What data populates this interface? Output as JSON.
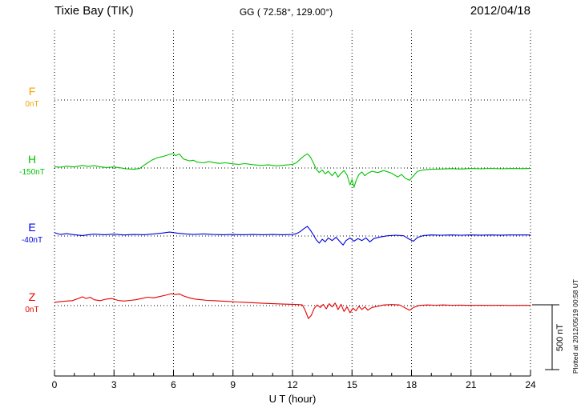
{
  "header": {
    "station": "Tixie Bay (TIK)",
    "coords": "GG ( 72.58°, 129.00°)",
    "date": "2012/04/18"
  },
  "footer_note": "Plotted at 2012/05/19 00:58 UT",
  "chart_data": {
    "type": "line",
    "title": "Tixie Bay (TIK) magnetogram 2012/04/18",
    "xlabel": "U T (hour)",
    "y_unit": "nT",
    "xlim": [
      0,
      24
    ],
    "x_ticks": [
      0,
      3,
      6,
      9,
      12,
      15,
      18,
      21,
      24
    ],
    "grid": "dotted",
    "legend_position": "left baseline labels",
    "scale_bar_label": "500 nT",
    "scale_bar_nT": 500,
    "series": [
      {
        "name": "F",
        "color": "#f5a300",
        "baseline_label": "0nT",
        "baseline_value_nT": 0,
        "note": "no visible trace (flat / not plotted)",
        "points": []
      },
      {
        "name": "H",
        "color": "#00c400",
        "baseline_label": "-150nT",
        "baseline_value_nT": -150,
        "points": [
          [
            0,
            10
          ],
          [
            0.3,
            6
          ],
          [
            0.6,
            14
          ],
          [
            1,
            8
          ],
          [
            1.4,
            20
          ],
          [
            1.7,
            12
          ],
          [
            2,
            18
          ],
          [
            2.3,
            10
          ],
          [
            2.6,
            4
          ],
          [
            3,
            8
          ],
          [
            3.3,
            2
          ],
          [
            3.6,
            -6
          ],
          [
            4,
            -10
          ],
          [
            4.3,
            -4
          ],
          [
            4.6,
            30
          ],
          [
            4.9,
            60
          ],
          [
            5.2,
            80
          ],
          [
            5.5,
            90
          ],
          [
            5.8,
            105
          ],
          [
            6,
            112
          ],
          [
            6.1,
            95
          ],
          [
            6.3,
            108
          ],
          [
            6.5,
            70
          ],
          [
            6.8,
            55
          ],
          [
            7,
            60
          ],
          [
            7.2,
            45
          ],
          [
            7.5,
            40
          ],
          [
            7.8,
            50
          ],
          [
            8,
            42
          ],
          [
            8.3,
            36
          ],
          [
            8.6,
            40
          ],
          [
            9,
            32
          ],
          [
            9.3,
            28
          ],
          [
            9.6,
            34
          ],
          [
            10,
            26
          ],
          [
            10.4,
            20
          ],
          [
            10.8,
            24
          ],
          [
            11.2,
            16
          ],
          [
            11.6,
            22
          ],
          [
            12,
            28
          ],
          [
            12.2,
            40
          ],
          [
            12.4,
            70
          ],
          [
            12.6,
            95
          ],
          [
            12.75,
            110
          ],
          [
            12.9,
            85
          ],
          [
            13.05,
            40
          ],
          [
            13.2,
            -10
          ],
          [
            13.35,
            -35
          ],
          [
            13.5,
            -15
          ],
          [
            13.65,
            -45
          ],
          [
            13.8,
            -25
          ],
          [
            14,
            -60
          ],
          [
            14.15,
            -30
          ],
          [
            14.3,
            -70
          ],
          [
            14.45,
            -40
          ],
          [
            14.6,
            -20
          ],
          [
            14.75,
            -55
          ],
          [
            14.9,
            -130
          ],
          [
            15,
            -90
          ],
          [
            15.1,
            -150
          ],
          [
            15.2,
            -100
          ],
          [
            15.35,
            -50
          ],
          [
            15.5,
            -30
          ],
          [
            15.65,
            -60
          ],
          [
            15.8,
            -40
          ],
          [
            16,
            -25
          ],
          [
            16.3,
            -35
          ],
          [
            16.6,
            -20
          ],
          [
            17,
            -40
          ],
          [
            17.3,
            -70
          ],
          [
            17.5,
            -50
          ],
          [
            17.7,
            -80
          ],
          [
            17.9,
            -95
          ],
          [
            18.1,
            -60
          ],
          [
            18.3,
            -25
          ],
          [
            18.6,
            -15
          ],
          [
            19,
            -10
          ],
          [
            19.5,
            -8
          ],
          [
            20,
            -5
          ],
          [
            20.5,
            -8
          ],
          [
            21,
            -4
          ],
          [
            21.5,
            -6
          ],
          [
            22,
            -3
          ],
          [
            22.5,
            -6
          ],
          [
            23,
            -4
          ],
          [
            23.5,
            -5
          ],
          [
            24,
            -4
          ]
        ]
      },
      {
        "name": "E",
        "color": "#0000dd",
        "baseline_label": "-40nT",
        "baseline_value_nT": -40,
        "points": [
          [
            0,
            25
          ],
          [
            0.3,
            12
          ],
          [
            0.6,
            18
          ],
          [
            1,
            10
          ],
          [
            1.4,
            4
          ],
          [
            1.7,
            10
          ],
          [
            2,
            14
          ],
          [
            2.5,
            10
          ],
          [
            3,
            14
          ],
          [
            3.5,
            8
          ],
          [
            4,
            12
          ],
          [
            4.5,
            10
          ],
          [
            5,
            16
          ],
          [
            5.4,
            22
          ],
          [
            5.8,
            30
          ],
          [
            6.2,
            22
          ],
          [
            6.6,
            16
          ],
          [
            7,
            12
          ],
          [
            7.5,
            16
          ],
          [
            8,
            12
          ],
          [
            8.5,
            10
          ],
          [
            9,
            12
          ],
          [
            9.5,
            10
          ],
          [
            10,
            12
          ],
          [
            10.5,
            10
          ],
          [
            11,
            12
          ],
          [
            11.5,
            10
          ],
          [
            12,
            12
          ],
          [
            12.2,
            18
          ],
          [
            12.4,
            35
          ],
          [
            12.6,
            60
          ],
          [
            12.75,
            74
          ],
          [
            12.9,
            45
          ],
          [
            13.05,
            10
          ],
          [
            13.2,
            -30
          ],
          [
            13.35,
            -55
          ],
          [
            13.5,
            -25
          ],
          [
            13.65,
            -45
          ],
          [
            13.8,
            -15
          ],
          [
            14,
            -35
          ],
          [
            14.2,
            -10
          ],
          [
            14.4,
            -45
          ],
          [
            14.55,
            -70
          ],
          [
            14.7,
            -35
          ],
          [
            14.9,
            -15
          ],
          [
            15.1,
            -40
          ],
          [
            15.3,
            -20
          ],
          [
            15.5,
            -35
          ],
          [
            15.7,
            -15
          ],
          [
            15.9,
            -45
          ],
          [
            16.1,
            -20
          ],
          [
            16.4,
            -8
          ],
          [
            16.8,
            2
          ],
          [
            17.2,
            6
          ],
          [
            17.6,
            2
          ],
          [
            17.9,
            -25
          ],
          [
            18.1,
            -40
          ],
          [
            18.3,
            -12
          ],
          [
            18.6,
            4
          ],
          [
            19,
            8
          ],
          [
            19.5,
            6
          ],
          [
            20,
            8
          ],
          [
            20.5,
            6
          ],
          [
            21,
            8
          ],
          [
            21.5,
            7
          ],
          [
            22,
            8
          ],
          [
            22.5,
            7
          ],
          [
            23,
            8
          ],
          [
            23.5,
            8
          ],
          [
            24,
            8
          ]
        ]
      },
      {
        "name": "Z",
        "color": "#e60000",
        "baseline_label": "0nT",
        "baseline_value_nT": 0,
        "points": [
          [
            0,
            25
          ],
          [
            0.3,
            30
          ],
          [
            0.6,
            35
          ],
          [
            0.9,
            38
          ],
          [
            1.2,
            55
          ],
          [
            1.4,
            68
          ],
          [
            1.6,
            55
          ],
          [
            1.8,
            65
          ],
          [
            2,
            45
          ],
          [
            2.3,
            38
          ],
          [
            2.6,
            50
          ],
          [
            2.9,
            55
          ],
          [
            3.2,
            40
          ],
          [
            3.5,
            35
          ],
          [
            3.8,
            40
          ],
          [
            4.1,
            45
          ],
          [
            4.4,
            55
          ],
          [
            4.7,
            65
          ],
          [
            5,
            60
          ],
          [
            5.3,
            70
          ],
          [
            5.6,
            80
          ],
          [
            5.9,
            92
          ],
          [
            6.1,
            85
          ],
          [
            6.3,
            90
          ],
          [
            6.5,
            75
          ],
          [
            6.8,
            60
          ],
          [
            7.1,
            50
          ],
          [
            7.4,
            45
          ],
          [
            7.7,
            40
          ],
          [
            8,
            38
          ],
          [
            8.4,
            35
          ],
          [
            8.8,
            32
          ],
          [
            9.2,
            28
          ],
          [
            9.6,
            25
          ],
          [
            10,
            22
          ],
          [
            10.5,
            18
          ],
          [
            11,
            15
          ],
          [
            11.5,
            12
          ],
          [
            12,
            10
          ],
          [
            12.3,
            8
          ],
          [
            12.5,
            5
          ],
          [
            12.65,
            -40
          ],
          [
            12.8,
            -100
          ],
          [
            12.95,
            -75
          ],
          [
            13.1,
            -20
          ],
          [
            13.25,
            5
          ],
          [
            13.4,
            -15
          ],
          [
            13.55,
            10
          ],
          [
            13.7,
            -25
          ],
          [
            13.85,
            15
          ],
          [
            14,
            -10
          ],
          [
            14.15,
            20
          ],
          [
            14.3,
            -30
          ],
          [
            14.45,
            10
          ],
          [
            14.6,
            -45
          ],
          [
            14.75,
            -10
          ],
          [
            14.9,
            -55
          ],
          [
            15.05,
            -20
          ],
          [
            15.2,
            -40
          ],
          [
            15.35,
            -5
          ],
          [
            15.5,
            -30
          ],
          [
            15.65,
            -10
          ],
          [
            15.8,
            -35
          ],
          [
            16,
            -15
          ],
          [
            16.3,
            -5
          ],
          [
            16.6,
            5
          ],
          [
            17,
            8
          ],
          [
            17.4,
            5
          ],
          [
            17.7,
            -20
          ],
          [
            17.9,
            -35
          ],
          [
            18.1,
            -15
          ],
          [
            18.4,
            2
          ],
          [
            18.8,
            5
          ],
          [
            19.2,
            3
          ],
          [
            19.6,
            5
          ],
          [
            20,
            3
          ],
          [
            20.5,
            4
          ],
          [
            21,
            2
          ],
          [
            21.5,
            3
          ],
          [
            22,
            2
          ],
          [
            22.5,
            3
          ],
          [
            23,
            1
          ],
          [
            23.5,
            2
          ],
          [
            24,
            2
          ]
        ]
      }
    ]
  }
}
